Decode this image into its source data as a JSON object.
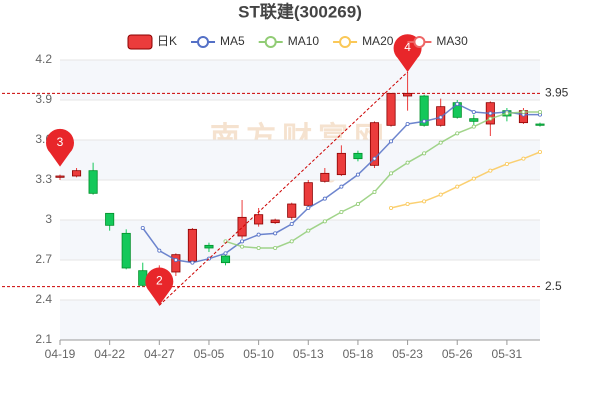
{
  "chart_data": {
    "type": "candlestick",
    "title": "ST联建(300269)",
    "watermark": [
      "南方财富网",
      "southmoney.com"
    ],
    "categories": [
      "04-19",
      null,
      null,
      "04-22",
      null,
      null,
      "04-27",
      null,
      null,
      "05-05",
      null,
      null,
      "05-10",
      null,
      null,
      "05-13",
      null,
      null,
      "05-18",
      null,
      null,
      "05-23",
      null,
      null,
      "05-26",
      null,
      null,
      "05-31",
      null,
      null
    ],
    "candles": {
      "name": "日K",
      "up_color": "#eb3c3c",
      "down_color": "#14c85a",
      "open": [
        3.32,
        3.33,
        3.37,
        3.05,
        2.9,
        2.62,
        2.52,
        2.61,
        2.69,
        2.81,
        2.73,
        2.88,
        2.97,
        2.98,
        3.02,
        3.11,
        3.29,
        3.34,
        3.5,
        3.41,
        3.71,
        3.93,
        3.93,
        3.71,
        3.88,
        3.76,
        3.72,
        3.82,
        3.73,
        3.72
      ],
      "close": [
        3.33,
        3.37,
        3.2,
        2.96,
        2.64,
        2.51,
        2.62,
        2.74,
        2.93,
        2.79,
        2.68,
        3.02,
        3.04,
        3.0,
        3.12,
        3.28,
        3.35,
        3.5,
        3.46,
        3.73,
        3.95,
        3.95,
        3.71,
        3.85,
        3.77,
        3.74,
        3.88,
        3.78,
        3.82,
        3.71
      ],
      "high": [
        3.34,
        3.39,
        3.43,
        3.05,
        2.93,
        2.68,
        2.66,
        2.75,
        2.94,
        2.83,
        2.74,
        3.15,
        3.09,
        3.01,
        3.13,
        3.3,
        3.39,
        3.56,
        3.52,
        3.74,
        3.95,
        4.11,
        3.94,
        3.91,
        3.9,
        3.79,
        3.89,
        3.84,
        3.84,
        3.73
      ],
      "low": [
        3.3,
        3.32,
        3.19,
        2.92,
        2.63,
        2.5,
        2.36,
        2.58,
        2.67,
        2.76,
        2.66,
        2.86,
        2.95,
        2.97,
        3.0,
        3.1,
        3.28,
        3.33,
        3.44,
        3.39,
        3.7,
        3.82,
        3.7,
        3.7,
        3.76,
        3.71,
        3.63,
        3.74,
        3.72,
        3.7
      ]
    },
    "series": [
      {
        "name": "MA5",
        "color": "#5470c6",
        "values": [
          null,
          null,
          null,
          null,
          null,
          2.94,
          2.77,
          2.7,
          2.68,
          2.71,
          2.75,
          2.84,
          2.89,
          2.9,
          2.97,
          3.09,
          3.16,
          3.25,
          3.34,
          3.46,
          3.59,
          3.72,
          3.74,
          3.77,
          3.87,
          3.81,
          3.8,
          3.81,
          3.79,
          3.79
        ]
      },
      {
        "name": "MA10",
        "color": "#91cc75",
        "values": [
          null,
          null,
          null,
          null,
          null,
          null,
          null,
          null,
          null,
          null,
          2.84,
          2.8,
          2.79,
          2.79,
          2.84,
          2.92,
          2.99,
          3.06,
          3.12,
          3.21,
          3.35,
          3.43,
          3.5,
          3.58,
          3.65,
          3.7,
          3.76,
          3.8,
          3.81,
          3.81
        ]
      },
      {
        "name": "MA20",
        "color": "#fac858",
        "values": [
          null,
          null,
          null,
          null,
          null,
          null,
          null,
          null,
          null,
          null,
          null,
          null,
          null,
          null,
          null,
          null,
          null,
          null,
          null,
          null,
          3.09,
          3.12,
          3.14,
          3.19,
          3.25,
          3.31,
          3.37,
          3.42,
          3.46,
          3.51
        ]
      },
      {
        "name": "MA30",
        "color": "#ee6666",
        "values": [
          null,
          null,
          null,
          null,
          null,
          null,
          null,
          null,
          null,
          null,
          null,
          null,
          null,
          null,
          null,
          null,
          null,
          null,
          null,
          null,
          null,
          null,
          null,
          null,
          null,
          null,
          null,
          null,
          null,
          null
        ]
      }
    ],
    "hlines": [
      3.95,
      2.5
    ],
    "annotations": [
      {
        "label": "3",
        "x": "04-19",
        "value": 3.4
      },
      {
        "label": "2",
        "x": "04-27",
        "value": 2.36
      },
      {
        "label": "4",
        "x": "05-23",
        "value": 4.11
      }
    ],
    "ylim": [
      2.1,
      4.2
    ],
    "yticks": [
      2.1,
      2.4,
      2.7,
      3,
      3.3,
      3.6,
      3.9,
      4.2
    ],
    "grid": true
  }
}
